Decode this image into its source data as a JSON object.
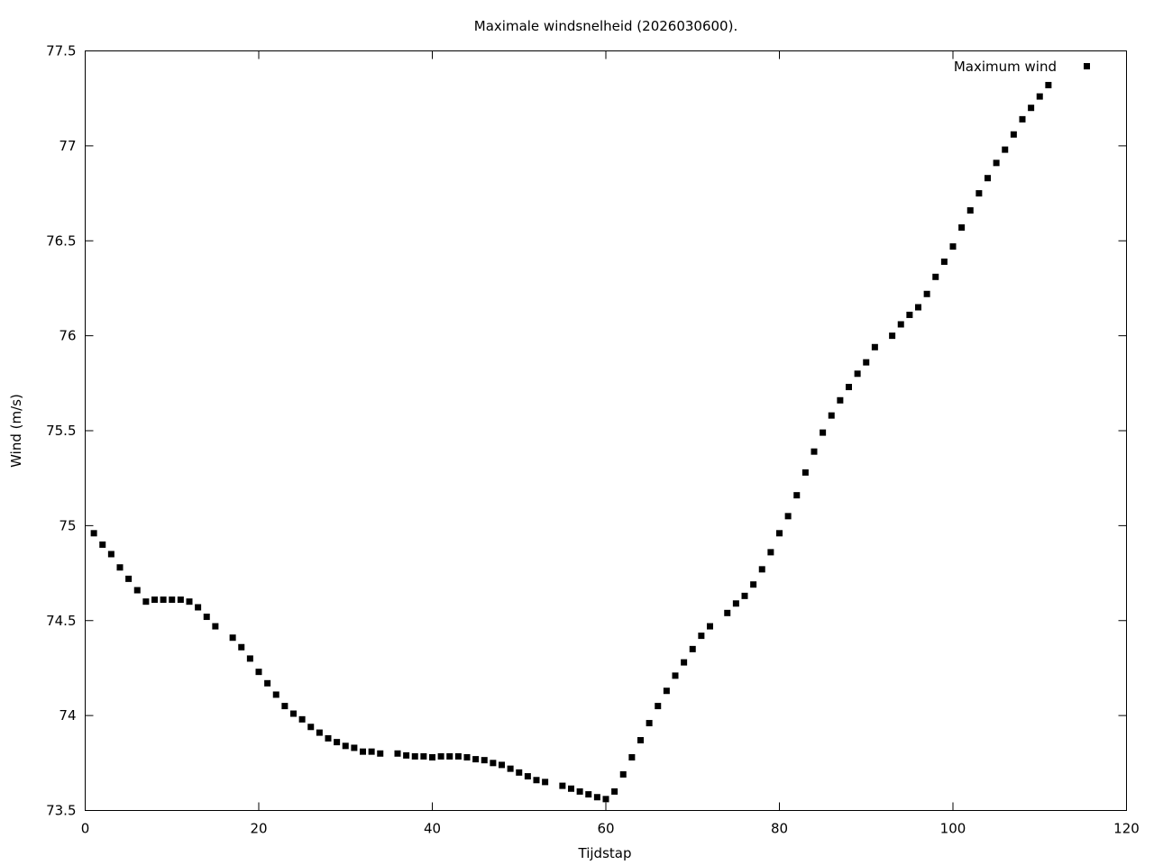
{
  "chart_data": {
    "type": "scatter",
    "title": "Maximale windsnelheid (2026030600).",
    "xlabel": "Tijdstap",
    "ylabel": "Wind (m/s)",
    "xlim": [
      0,
      120
    ],
    "ylim": [
      73.5,
      77.5
    ],
    "x_ticks": [
      0,
      20,
      40,
      60,
      80,
      100,
      120
    ],
    "x_tick_labels": [
      "0",
      "20",
      "40",
      "60",
      "80",
      "100",
      "120"
    ],
    "y_ticks": [
      73.5,
      74,
      74.5,
      75,
      75.5,
      76,
      76.5,
      77,
      77.5
    ],
    "y_tick_labels": [
      "73.5",
      "74",
      "74.5",
      "75",
      "75.5",
      "76",
      "76.5",
      "77",
      "77.5"
    ],
    "grid": false,
    "legend_position": "top-right",
    "marker_color": "#000000",
    "series": [
      {
        "name": "Maximum wind",
        "x": [
          1,
          2,
          3,
          4,
          5,
          6,
          7,
          8,
          9,
          10,
          11,
          12,
          13,
          14,
          15,
          17,
          18,
          19,
          20,
          21,
          22,
          23,
          24,
          25,
          26,
          27,
          28,
          29,
          30,
          31,
          32,
          33,
          34,
          36,
          37,
          38,
          39,
          40,
          41,
          42,
          43,
          44,
          45,
          46,
          47,
          48,
          49,
          50,
          51,
          52,
          53,
          55,
          56,
          57,
          58,
          59,
          60,
          61,
          62,
          63,
          64,
          65,
          66,
          67,
          68,
          69,
          70,
          71,
          72,
          74,
          75,
          76,
          77,
          78,
          79,
          80,
          81,
          82,
          83,
          84,
          85,
          86,
          87,
          88,
          89,
          90,
          91,
          93,
          94,
          95,
          96,
          97,
          98,
          99,
          100,
          101,
          102,
          103,
          104,
          105,
          106,
          107,
          108,
          109,
          110,
          111
        ],
        "y": [
          74.96,
          74.9,
          74.85,
          74.78,
          74.72,
          74.66,
          74.6,
          74.61,
          74.61,
          74.61,
          74.61,
          74.6,
          74.57,
          74.52,
          74.47,
          74.41,
          74.36,
          74.3,
          74.23,
          74.17,
          74.11,
          74.05,
          74.01,
          73.98,
          73.94,
          73.91,
          73.88,
          73.86,
          73.84,
          73.83,
          73.81,
          73.81,
          73.8,
          73.8,
          73.79,
          73.785,
          73.785,
          73.78,
          73.785,
          73.785,
          73.785,
          73.78,
          73.77,
          73.765,
          73.75,
          73.74,
          73.72,
          73.7,
          73.68,
          73.66,
          73.65,
          73.63,
          73.615,
          73.6,
          73.585,
          73.57,
          73.56,
          73.6,
          73.69,
          73.78,
          73.87,
          73.96,
          74.05,
          74.13,
          74.21,
          74.28,
          74.35,
          74.42,
          74.47,
          74.54,
          74.59,
          74.63,
          74.69,
          74.77,
          74.86,
          74.96,
          75.05,
          75.16,
          75.28,
          75.39,
          75.49,
          75.58,
          75.66,
          75.73,
          75.8,
          75.86,
          75.94,
          76.0,
          76.06,
          76.11,
          76.15,
          76.22,
          76.31,
          76.39,
          76.47,
          76.57,
          76.66,
          76.75,
          76.83,
          76.91,
          76.98,
          77.06,
          77.14,
          77.2,
          77.26,
          77.32
        ]
      }
    ]
  }
}
